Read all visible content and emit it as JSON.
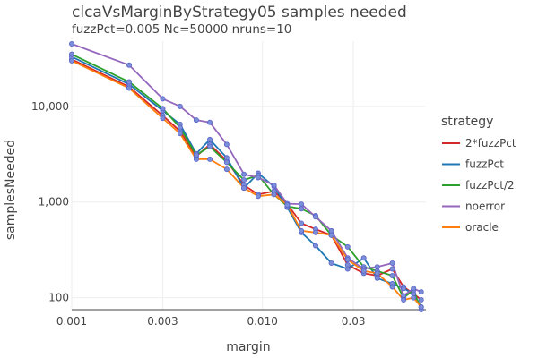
{
  "chart_data": {
    "type": "line",
    "title": "clcaVsMarginByStrategy05 samples needed",
    "subtitle": "fuzzPct=0.005 Nc=50000 nruns=10",
    "xlabel": "margin",
    "ylabel": "samplesNeeded",
    "x_scale": "log",
    "y_scale": "log",
    "xlim": [
      0.001,
      0.072
    ],
    "ylim": [
      75,
      48000
    ],
    "x_ticks": [
      0.001,
      0.003,
      0.01,
      0.03
    ],
    "x_tick_labels": [
      "0.001",
      "0.003",
      "0.010",
      "0.03"
    ],
    "y_ticks": [
      100,
      1000,
      10000
    ],
    "y_tick_labels": [
      "100",
      "1,000",
      "10,000"
    ],
    "grid": true,
    "legend_title": "strategy",
    "legend_position": "right",
    "x": [
      0.001,
      0.002,
      0.003,
      0.0037,
      0.0045,
      0.0053,
      0.0065,
      0.008,
      0.0095,
      0.0115,
      0.0135,
      0.016,
      0.019,
      0.023,
      0.028,
      0.034,
      0.04,
      0.048,
      0.055,
      0.062,
      0.068
    ],
    "series": [
      {
        "name": "2*fuzzPct",
        "color": "#d62728",
        "values": [
          31000,
          16000,
          8000,
          5500,
          3000,
          4000,
          2700,
          1500,
          1200,
          1300,
          950,
          600,
          520,
          450,
          220,
          180,
          170,
          200,
          130,
          110,
          95
        ]
      },
      {
        "name": "fuzzPct",
        "color": "#1f77b4",
        "values": [
          33000,
          17000,
          9000,
          6500,
          3200,
          4500,
          2900,
          1400,
          2000,
          1450,
          880,
          480,
          350,
          230,
          200,
          260,
          160,
          140,
          125,
          110,
          80
        ]
      },
      {
        "name": "fuzzPct/2",
        "color": "#2ca02c",
        "values": [
          35000,
          18000,
          9500,
          6000,
          3100,
          3800,
          2600,
          1700,
          1900,
          1200,
          900,
          850,
          720,
          450,
          340,
          210,
          190,
          170,
          100,
          120,
          75
        ]
      },
      {
        "name": "noerror",
        "color": "#9467bd",
        "values": [
          45000,
          27000,
          12000,
          10000,
          7200,
          6800,
          4000,
          1950,
          1800,
          1500,
          960,
          950,
          700,
          500,
          260,
          200,
          210,
          230,
          105,
          125,
          115
        ]
      },
      {
        "name": "oracle",
        "color": "#ff7f0e",
        "values": [
          30000,
          15500,
          7500,
          5200,
          2800,
          2800,
          2200,
          1400,
          1150,
          1200,
          930,
          500,
          480,
          450,
          250,
          190,
          180,
          130,
          95,
          100,
          80
        ]
      }
    ]
  }
}
